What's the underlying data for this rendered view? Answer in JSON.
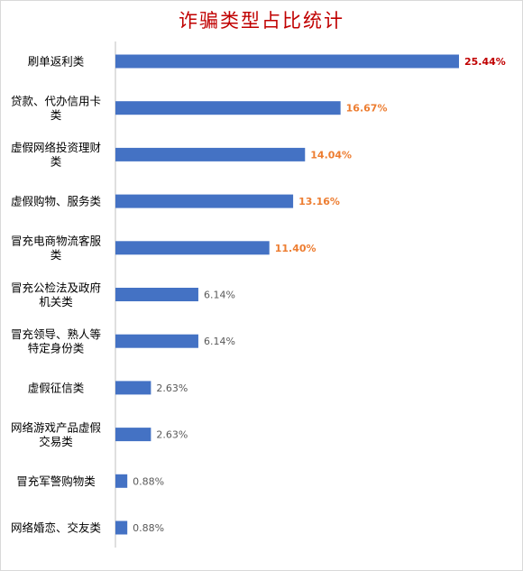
{
  "chart_data": {
    "type": "bar",
    "orientation": "horizontal",
    "title": "诈骗类型占比统计",
    "categories": [
      [
        "刷单返利类"
      ],
      [
        "贷款、代办信用卡",
        "类"
      ],
      [
        "虚假网络投资理财",
        "类"
      ],
      [
        "虚假购物、服务类"
      ],
      [
        "冒充电商物流客服",
        "类"
      ],
      [
        "冒充公检法及政府",
        "机关类"
      ],
      [
        "冒充领导、熟人等",
        "特定身份类"
      ],
      [
        "虚假征信类"
      ],
      [
        "网络游戏产品虚假",
        "交易类"
      ],
      [
        "冒充军警购物类"
      ],
      [
        "网络婚恋、交友类"
      ]
    ],
    "values": [
      25.44,
      16.67,
      14.04,
      13.16,
      11.4,
      6.14,
      6.14,
      2.63,
      2.63,
      0.88,
      0.88
    ],
    "value_labels": [
      "25.44%",
      "16.67%",
      "14.04%",
      "13.16%",
      "11.40%",
      "6.14%",
      "6.14%",
      "2.63%",
      "2.63%",
      "0.88%",
      "0.88%"
    ],
    "label_colors": [
      "#c00000",
      "#ed7d31",
      "#ed7d31",
      "#ed7d31",
      "#ed7d31",
      "#595959",
      "#595959",
      "#595959",
      "#595959",
      "#595959",
      "#595959"
    ],
    "bar_color": "#4472c4",
    "axis_color": "#bfbfbf",
    "xlim": [
      0,
      25.44
    ],
    "grid": false,
    "legend": "none"
  }
}
